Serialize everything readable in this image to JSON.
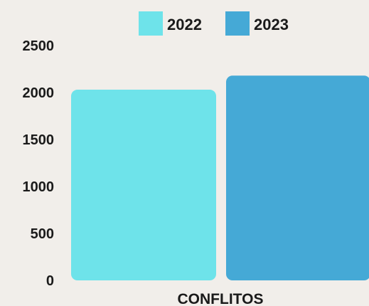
{
  "chart_data": {
    "type": "bar",
    "categories": [
      "CONFLITOS"
    ],
    "series": [
      {
        "name": "2022",
        "values": [
          2030
        ],
        "color": "#6ee3ea"
      },
      {
        "name": "2023",
        "values": [
          2180
        ],
        "color": "#45a9d6"
      }
    ],
    "ylim": [
      0,
      2500
    ],
    "yticks": [
      0,
      500,
      1000,
      1500,
      2000,
      2500
    ],
    "legend_position": "top-center",
    "grid": false,
    "background": "#f1eeea"
  }
}
